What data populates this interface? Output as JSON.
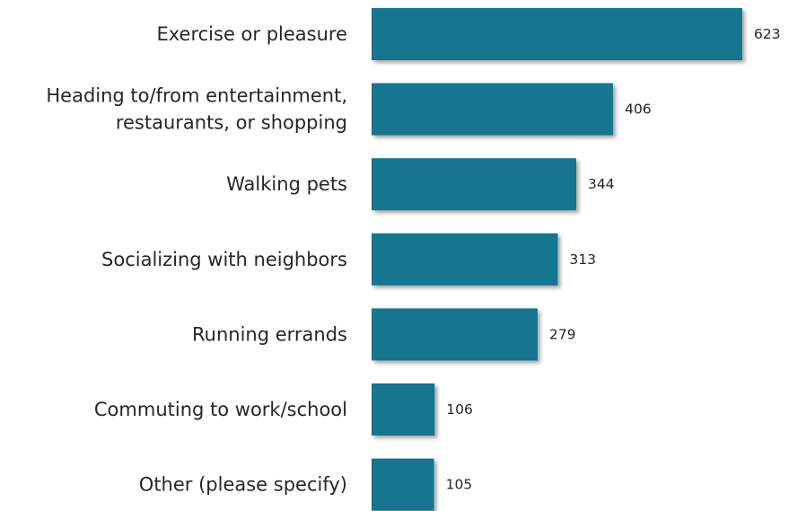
{
  "chart_data": {
    "type": "bar",
    "orientation": "horizontal",
    "categories": [
      "Exercise or pleasure",
      "Heading to/from entertainment, restaurants, or shopping",
      "Walking pets",
      "Socializing with neighbors",
      "Running errands",
      "Commuting to work/school",
      "Other (please specify)"
    ],
    "category_lines": [
      [
        "Exercise or pleasure"
      ],
      [
        "Heading to/from entertainment,",
        "restaurants, or shopping"
      ],
      [
        "Walking pets"
      ],
      [
        "Socializing with neighbors"
      ],
      [
        "Running errands"
      ],
      [
        "Commuting to work/school"
      ],
      [
        "Other (please specify)"
      ]
    ],
    "values": [
      623,
      406,
      344,
      313,
      279,
      106,
      105
    ],
    "value_labels": [
      "623",
      "406",
      "344",
      "313",
      "279",
      "106",
      "105"
    ],
    "xlim": [
      0,
      623
    ],
    "grid": false,
    "legend": "none",
    "colors": {
      "bar": "#14758f",
      "bar_shadow": "#8a8a8a",
      "text": "#262626"
    }
  }
}
